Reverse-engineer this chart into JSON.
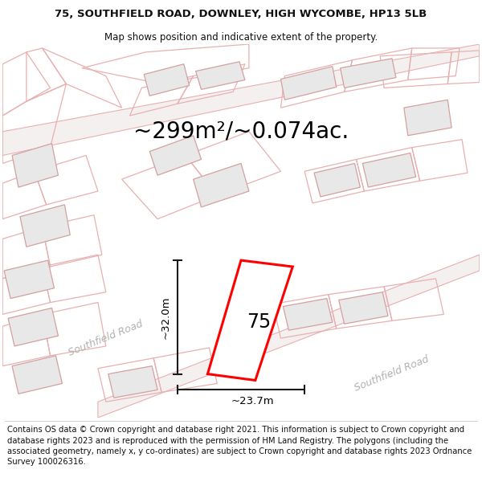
{
  "title_line1": "75, SOUTHFIELD ROAD, DOWNLEY, HIGH WYCOMBE, HP13 5LB",
  "title_line2": "Map shows position and indicative extent of the property.",
  "area_text": "~299m²/~0.074ac.",
  "property_number": "75",
  "dim_width": "~23.7m",
  "dim_height": "~32.0m",
  "road_label1": "Southfield Road",
  "road_label2": "Southfield Road",
  "footer_text": "Contains OS data © Crown copyright and database right 2021. This information is subject to Crown copyright and database rights 2023 and is reproduced with the permission of HM Land Registry. The polygons (including the associated geometry, namely x, y co-ordinates) are subject to Crown copyright and database rights 2023 Ordnance Survey 100026316.",
  "bg_color": "#ffffff",
  "highlight_color": "#ff0000",
  "building_fill": "#e8e8e8",
  "building_edge": "#d4a0a0",
  "parcel_edge": "#e8b0b0",
  "dim_line_color": "#1a1a1a",
  "road_text_color": "#b0b0b0",
  "title_fontsize": 9.5,
  "subtitle_fontsize": 8.5,
  "area_fontsize": 20,
  "number_fontsize": 17,
  "dim_fontsize": 9.5,
  "road_label_fontsize": 9,
  "footer_fontsize": 7.2,
  "map_border_color": "#cccccc"
}
